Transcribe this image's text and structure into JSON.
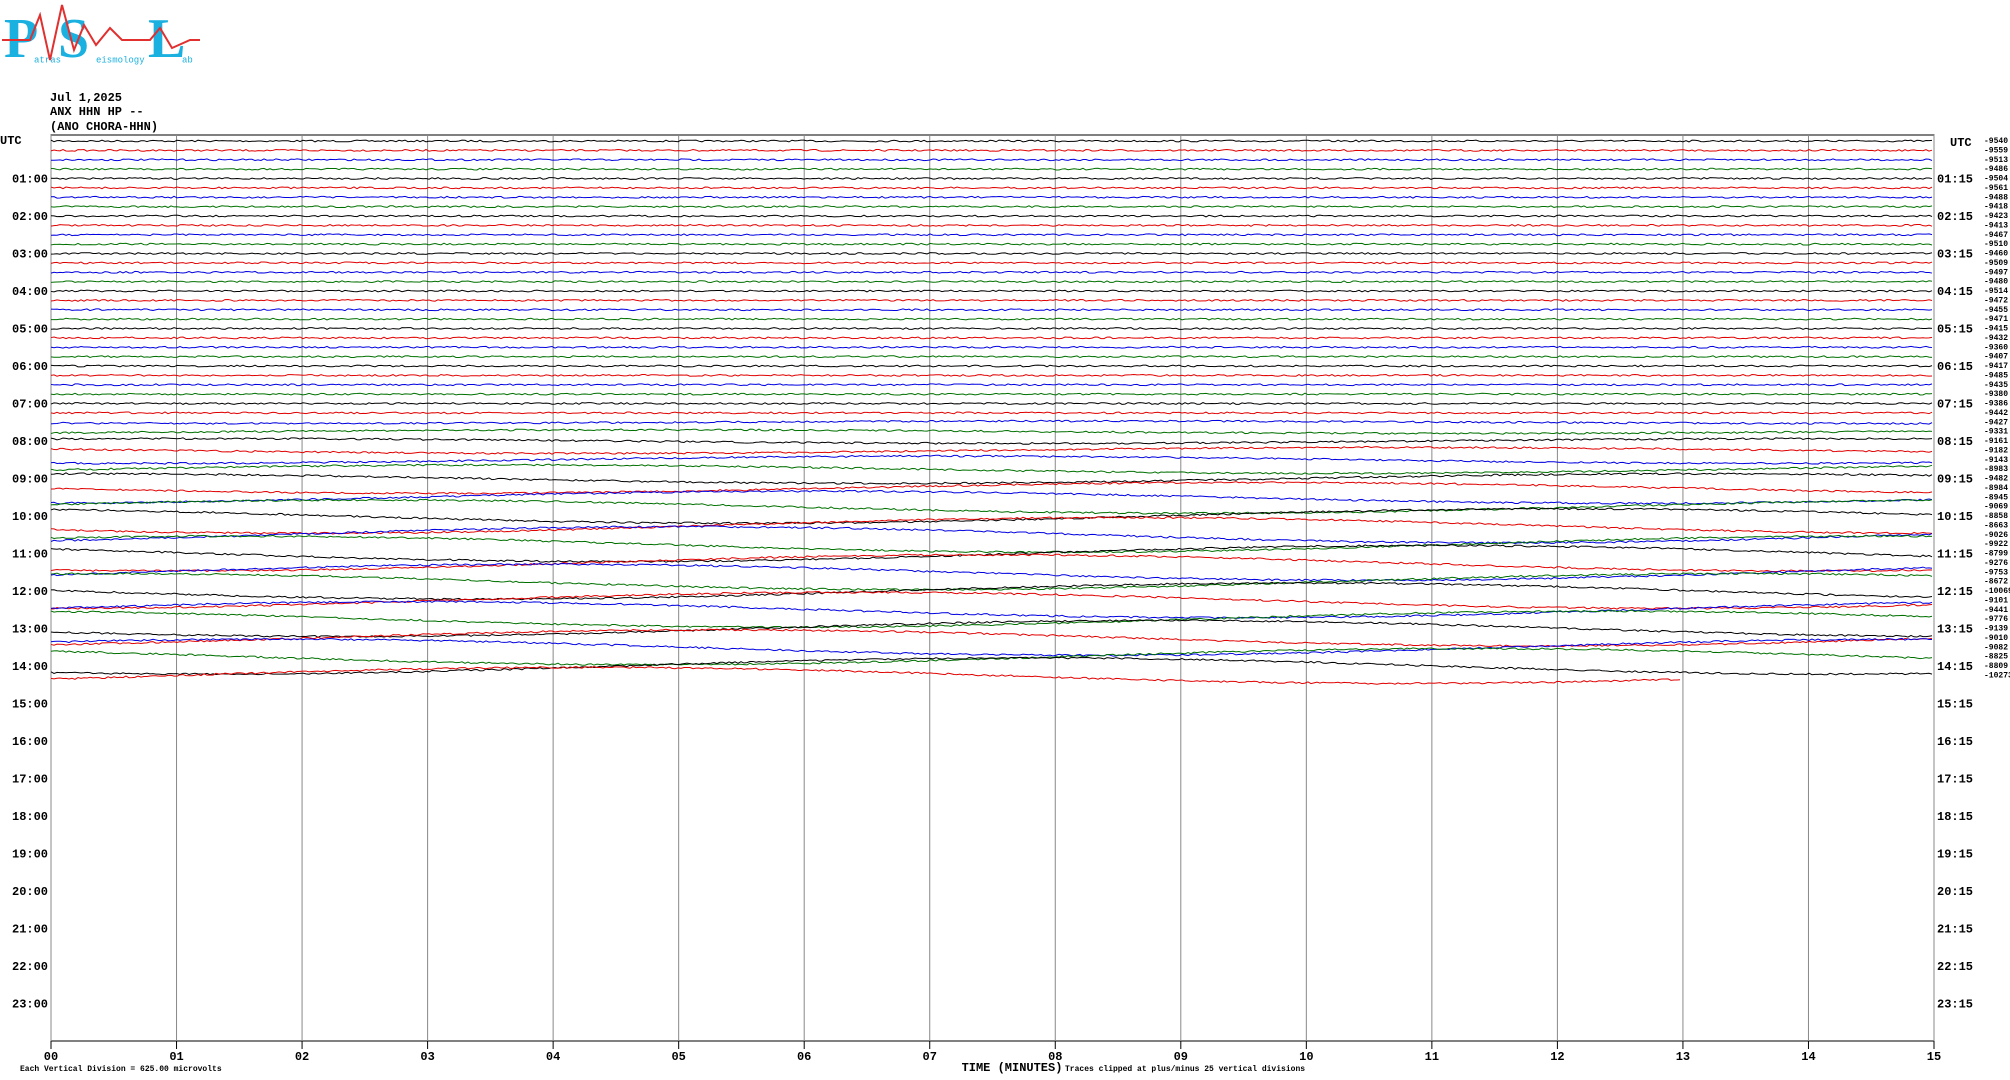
{
  "chart_data": {
    "type": "helicorder",
    "logo": {
      "letters": [
        "P",
        "S",
        "L"
      ],
      "words": [
        "atras",
        "eismology",
        "ab"
      ]
    },
    "date": "Jul 1,2025",
    "station": "ANX HHN HP --",
    "location": "(ANO CHORA-HHN)",
    "left_header": "UTC",
    "right_header": "UTC",
    "hour_labels": [
      "01:00",
      "02:00",
      "03:00",
      "04:00",
      "05:00",
      "06:00",
      "07:00",
      "08:00",
      "09:00",
      "10:00",
      "11:00",
      "12:00",
      "13:00",
      "14:00",
      "15:00",
      "16:00",
      "17:00",
      "18:00",
      "19:00",
      "20:00",
      "21:00",
      "22:00",
      "23:00"
    ],
    "right_labels": [
      "01:15",
      "02:15",
      "03:15",
      "04:15",
      "05:15",
      "06:15",
      "07:15",
      "08:15",
      "09:15",
      "10:15",
      "11:15",
      "12:15",
      "13:15",
      "14:15",
      "15:15",
      "16:15",
      "17:15",
      "18:15",
      "19:15",
      "20:15",
      "21:15",
      "22:15",
      "23:15"
    ],
    "xlabel": "TIME (MINUTES)",
    "scale_note": "Each Vertical Division =  625.00 microvolts",
    "clip_note": "Traces clipped at plus/minus 25 vertical divisions",
    "xlim": [
      0,
      15
    ],
    "xticks": [
      {
        "value": 0,
        "label": "00"
      },
      {
        "value": 1,
        "label": "01"
      },
      {
        "value": 2,
        "label": "02"
      },
      {
        "value": 3,
        "label": "03"
      },
      {
        "value": 4,
        "label": "04"
      },
      {
        "value": 5,
        "label": "05"
      },
      {
        "value": 6,
        "label": "06"
      },
      {
        "value": 7,
        "label": "07"
      },
      {
        "value": 8,
        "label": "08"
      },
      {
        "value": 9,
        "label": "09"
      },
      {
        "value": 10,
        "label": "10"
      },
      {
        "value": 11,
        "label": "11"
      },
      {
        "value": 12,
        "label": "12"
      },
      {
        "value": 13,
        "label": "13"
      },
      {
        "value": 14,
        "label": "14"
      },
      {
        "value": 15,
        "label": "15"
      }
    ],
    "trace_colors": [
      "#000000",
      "#e00000",
      "#0000e0",
      "#007000"
    ],
    "last_trace_end": 13,
    "trace_offsets": [
      -9540,
      -9559,
      -9513,
      -9486,
      -9504,
      -9561,
      -9488,
      -9418,
      -9423,
      -9413,
      -9467,
      -9510,
      -9460,
      -9509,
      -9497,
      -9480,
      -9514,
      -9472,
      -9455,
      -9471,
      -9415,
      -9432,
      -9360,
      -9407,
      -9417,
      -9485,
      -9435,
      -9380,
      -9386,
      -9442,
      -9427,
      -9331,
      -9161,
      -9182,
      -9143,
      -8983,
      -9482,
      -8984,
      -8945,
      -9069,
      -8858,
      -8663,
      -9026,
      -9922,
      -8799,
      -9276,
      -9753,
      -8672,
      -10069,
      -9101,
      -9441,
      -9776,
      -9139,
      -9010,
      -9082,
      -8825,
      -8809,
      -10273
    ]
  }
}
